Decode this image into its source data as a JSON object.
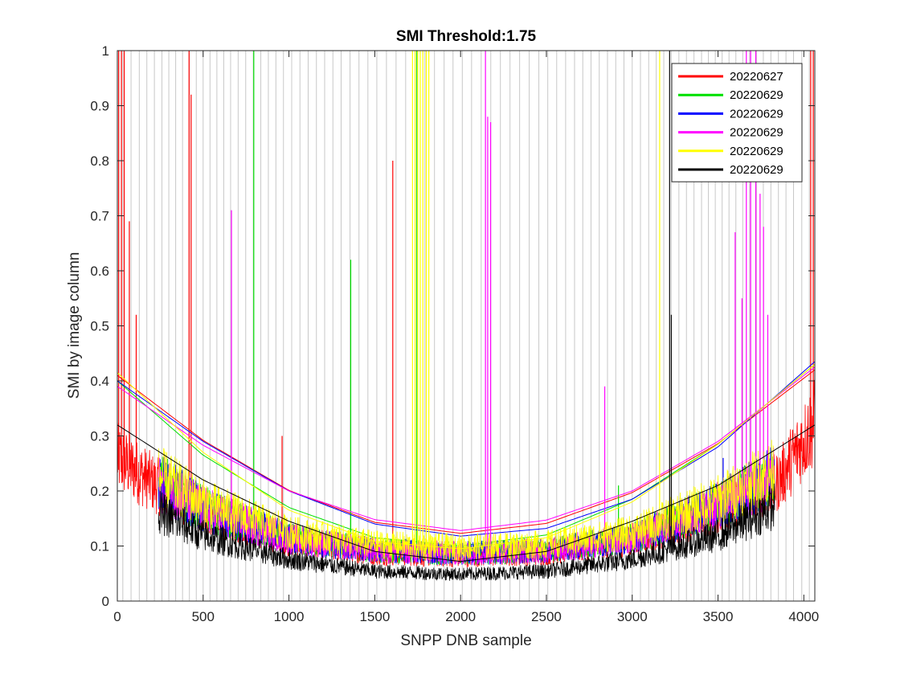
{
  "chart_data": {
    "type": "line",
    "title": "SMI Threshold:1.75",
    "xlabel": "SNPP DNB sample",
    "ylabel": "SMI by image column",
    "xlim": [
      0,
      4064
    ],
    "ylim": [
      0,
      1
    ],
    "xticks": [
      0,
      500,
      1000,
      1500,
      2000,
      2500,
      3000,
      3500,
      4000
    ],
    "yticks": [
      0,
      0.1,
      0.2,
      0.3,
      0.4,
      0.5,
      0.6,
      0.7,
      0.8,
      0.9,
      1
    ],
    "grid": false,
    "legend_position": "top-right",
    "aggregation_zone_boundaries": [
      32,
      80,
      128,
      172,
      216,
      260,
      300,
      340,
      380,
      420,
      460,
      500,
      540,
      580,
      620,
      660,
      704,
      748,
      792,
      836,
      880,
      924,
      968,
      1016,
      1064,
      1112,
      1160,
      1208,
      1256,
      1304,
      1356,
      1408,
      1460,
      1512,
      1568,
      1624,
      1680,
      1736,
      1792,
      1848,
      1904,
      1956,
      2010,
      2064,
      2120,
      2176,
      2232,
      2288,
      2344,
      2400,
      2456,
      2508,
      2560,
      2612,
      2664,
      2712,
      2760,
      2808,
      2856,
      2904,
      2952,
      3000,
      3048,
      3096,
      3140,
      3184,
      3228,
      3272,
      3316,
      3360,
      3404,
      3444,
      3484,
      3524,
      3564,
      3604,
      3644,
      3684,
      3724,
      3764,
      3808,
      3852,
      3896,
      3940,
      3988,
      4032
    ],
    "series": [
      {
        "name": "20220627",
        "color": "#ff0000",
        "x_range": [
          0,
          4064
        ],
        "fit_curve": {
          "x": [
            0,
            500,
            1000,
            1500,
            2000,
            2500,
            3000,
            3500,
            4064
          ],
          "y": [
            0.41,
            0.292,
            0.201,
            0.143,
            0.123,
            0.141,
            0.197,
            0.286,
            0.42
          ]
        },
        "noise_baseline": {
          "x": [
            0,
            250,
            500,
            1000,
            1500,
            2000,
            2500,
            3000,
            3500,
            3850,
            4064
          ],
          "y": [
            0.24,
            0.19,
            0.15,
            0.1,
            0.08,
            0.075,
            0.08,
            0.1,
            0.15,
            0.2,
            0.3
          ]
        },
        "spikes": [
          {
            "x": 8,
            "y": 1
          },
          {
            "x": 24,
            "y": 1
          },
          {
            "x": 40,
            "y": 1
          },
          {
            "x": 70,
            "y": 0.69
          },
          {
            "x": 110,
            "y": 0.52
          },
          {
            "x": 418,
            "y": 1
          },
          {
            "x": 430,
            "y": 0.92
          },
          {
            "x": 960,
            "y": 0.3
          },
          {
            "x": 1605,
            "y": 0.8
          },
          {
            "x": 4040,
            "y": 1
          },
          {
            "x": 4055,
            "y": 1
          }
        ]
      },
      {
        "name": "20220629",
        "color": "#00e000",
        "x_range": [
          240,
          3830
        ],
        "fit_curve": {
          "x": [
            0,
            500,
            1000,
            1500,
            2000,
            2500,
            3000,
            3500,
            4064
          ],
          "y": [
            0.4,
            0.265,
            0.17,
            0.115,
            0.1,
            0.12,
            0.185,
            0.285,
            0.43
          ]
        },
        "noise_baseline": {
          "x": [
            240,
            500,
            1000,
            1500,
            2000,
            2500,
            3000,
            3500,
            3830
          ],
          "y": [
            0.2,
            0.155,
            0.105,
            0.085,
            0.08,
            0.085,
            0.105,
            0.16,
            0.21
          ]
        },
        "spikes": [
          {
            "x": 795,
            "y": 1
          },
          {
            "x": 1360,
            "y": 0.62
          },
          {
            "x": 1745,
            "y": 1
          },
          {
            "x": 2920,
            "y": 0.21
          }
        ]
      },
      {
        "name": "20220629",
        "color": "#0000ff",
        "x_range": [
          240,
          3830
        ],
        "fit_curve": {
          "x": [
            0,
            500,
            1000,
            1500,
            2000,
            2500,
            3000,
            3500,
            4064
          ],
          "y": [
            0.4,
            0.29,
            0.2,
            0.14,
            0.118,
            0.132,
            0.185,
            0.28,
            0.435
          ]
        },
        "noise_baseline": {
          "x": [
            240,
            500,
            1000,
            1500,
            2000,
            2500,
            3000,
            3500,
            3830
          ],
          "y": [
            0.2,
            0.155,
            0.105,
            0.085,
            0.08,
            0.085,
            0.105,
            0.16,
            0.21
          ]
        },
        "spikes": [
          {
            "x": 3530,
            "y": 0.26
          }
        ]
      },
      {
        "name": "20220629",
        "color": "#ff00ff",
        "x_range": [
          240,
          3830
        ],
        "fit_curve": {
          "x": [
            0,
            500,
            1000,
            1500,
            2000,
            2500,
            3000,
            3500,
            4064
          ],
          "y": [
            0.39,
            0.283,
            0.2,
            0.148,
            0.128,
            0.147,
            0.2,
            0.29,
            0.425
          ]
        },
        "noise_baseline": {
          "x": [
            240,
            500,
            1000,
            1500,
            2000,
            2500,
            3000,
            3500,
            3830
          ],
          "y": [
            0.2,
            0.155,
            0.105,
            0.085,
            0.08,
            0.085,
            0.105,
            0.16,
            0.21
          ]
        },
        "spikes": [
          {
            "x": 665,
            "y": 0.71
          },
          {
            "x": 2145,
            "y": 1
          },
          {
            "x": 2158,
            "y": 0.88
          },
          {
            "x": 2175,
            "y": 0.87
          },
          {
            "x": 2840,
            "y": 0.39
          },
          {
            "x": 3600,
            "y": 0.67
          },
          {
            "x": 3640,
            "y": 0.55
          },
          {
            "x": 3665,
            "y": 1
          },
          {
            "x": 3690,
            "y": 1
          },
          {
            "x": 3720,
            "y": 1
          },
          {
            "x": 3745,
            "y": 0.74
          },
          {
            "x": 3765,
            "y": 0.68
          },
          {
            "x": 3790,
            "y": 0.52
          }
        ]
      },
      {
        "name": "20220629",
        "color": "#ffff00",
        "x_range": [
          240,
          3830
        ],
        "fit_curve": {
          "x": [
            0,
            500,
            1000,
            1500,
            2000,
            2500,
            3000,
            3500,
            4064
          ],
          "y": [
            0.415,
            0.27,
            0.165,
            0.108,
            0.095,
            0.115,
            0.18,
            0.285,
            0.43
          ]
        },
        "noise_baseline": {
          "x": [
            240,
            500,
            1000,
            1500,
            2000,
            2500,
            3000,
            3500,
            3830
          ],
          "y": [
            0.21,
            0.165,
            0.115,
            0.095,
            0.09,
            0.095,
            0.115,
            0.17,
            0.22
          ]
        },
        "spikes": [
          {
            "x": 1720,
            "y": 1
          },
          {
            "x": 1735,
            "y": 1
          },
          {
            "x": 1750,
            "y": 1
          },
          {
            "x": 1765,
            "y": 1
          },
          {
            "x": 1780,
            "y": 1
          },
          {
            "x": 1800,
            "y": 1
          },
          {
            "x": 1815,
            "y": 1
          },
          {
            "x": 3160,
            "y": 1
          }
        ]
      },
      {
        "name": "20220629",
        "color": "#000000",
        "x_range": [
          240,
          3830
        ],
        "fit_curve": {
          "x": [
            0,
            500,
            1000,
            1500,
            2000,
            2500,
            3000,
            3500,
            4064
          ],
          "y": [
            0.32,
            0.22,
            0.145,
            0.09,
            0.072,
            0.09,
            0.145,
            0.21,
            0.32
          ]
        },
        "noise_baseline": {
          "x": [
            240,
            500,
            1000,
            1500,
            2000,
            2500,
            3000,
            3500,
            3830
          ],
          "y": [
            0.15,
            0.11,
            0.07,
            0.05,
            0.045,
            0.05,
            0.07,
            0.11,
            0.16
          ]
        },
        "spikes": [
          {
            "x": 3218,
            "y": 1
          },
          {
            "x": 3228,
            "y": 0.52
          }
        ]
      }
    ]
  }
}
